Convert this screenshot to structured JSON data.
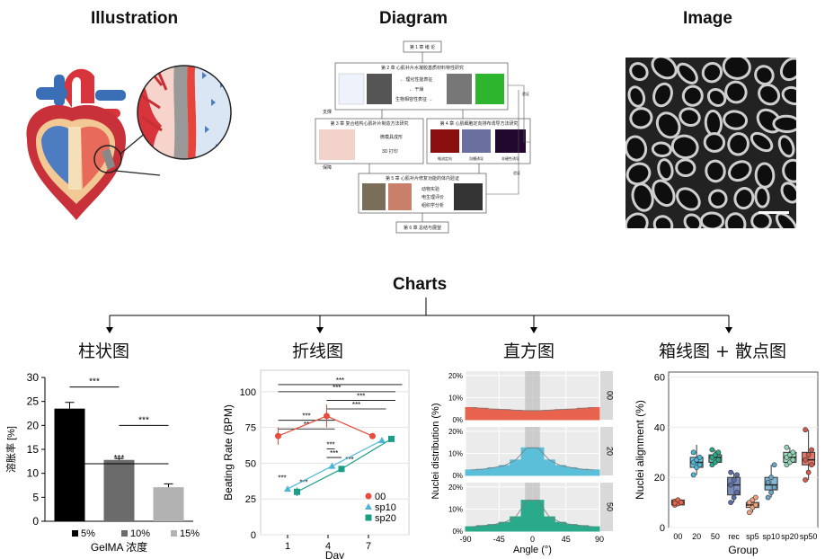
{
  "headers": {
    "illustration": "Illustration",
    "diagram": "Diagram",
    "image": "Image",
    "charts": "Charts"
  },
  "chart_titles": {
    "bar": "柱状图",
    "line": "折线图",
    "hist": "直方图",
    "box": "箱线图 + 散点图"
  },
  "diagram_text": {
    "ch1": "第 1 章 绪 论",
    "ch2": "第 2 章 心肌补片水凝胶基质材料特性研究",
    "ch2_items": [
      "← 理化性能表征",
      "← 干燥",
      "生物相容性表征 →"
    ],
    "ch3": "第 3 章 复合结构心肌补片制造方法研究",
    "ch3_items": [
      "微模具成形",
      "3D 打印"
    ],
    "ch4": "第 4 章 心肌细胞定向排布诱导方法研究",
    "ch4_items": [
      "微流定向",
      "沟槽诱导",
      "非硬性诱导"
    ],
    "ch5": "第 5 章 心肌补片修复功能的体内验证",
    "ch5_items": [
      "动物实验",
      "电生理评价",
      "组织学分析"
    ],
    "ch6": "第 6 章 总结与展望",
    "side_left_1": "支撑",
    "side_left_2": "保障",
    "side_right_1": "验证",
    "side_right_2": "验证"
  },
  "chart_data": [
    {
      "type": "bar",
      "categories": [
        "5%",
        "10%",
        "15%"
      ],
      "values": [
        23.5,
        12.8,
        7.1
      ],
      "errors": [
        1.3,
        0.3,
        0.7
      ],
      "colors": [
        "#000000",
        "#6b6b6b",
        "#b2b2b2"
      ],
      "xlabel": "GelMA 浓度",
      "ylabel": "溶胀率 [%]",
      "yticks": [
        0,
        5,
        10,
        15,
        20,
        25,
        30
      ],
      "ylim": [
        0,
        30
      ],
      "significance": [
        {
          "from": 0,
          "to": 1,
          "label": "***"
        },
        {
          "from": 0,
          "to": 2,
          "label": "***"
        },
        {
          "from": 1,
          "to": 2,
          "label": "***"
        }
      ]
    },
    {
      "type": "line",
      "x": [
        1,
        4,
        7
      ],
      "xlabel": "Day",
      "ylabel": "Beating Rate (BPM)",
      "yticks": [
        0,
        25,
        50,
        75,
        100
      ],
      "ylim": [
        0,
        115
      ],
      "xticks": [
        1,
        4,
        7
      ],
      "series": [
        {
          "name": "00",
          "color": "#e74c3c",
          "marker": "circle",
          "x": [
            0.3,
            3.9,
            7.3
          ],
          "values": [
            69,
            83,
            69
          ],
          "errors": [
            6,
            8,
            0
          ]
        },
        {
          "name": "sp10",
          "color": "#4db6d6",
          "marker": "triangle",
          "x": [
            1.0,
            4.3,
            8.0
          ],
          "values": [
            32,
            48,
            66
          ],
          "errors": [
            2,
            2,
            1
          ]
        },
        {
          "name": "sp20",
          "color": "#1a9e86",
          "marker": "square",
          "x": [
            1.7,
            5.0,
            8.7
          ],
          "values": [
            30,
            46,
            67
          ],
          "errors": [
            3,
            2,
            1
          ]
        }
      ],
      "significance_labels": [
        "***",
        "***",
        "***",
        "***",
        "***",
        "**",
        "***",
        "***",
        "***",
        "***",
        "***"
      ]
    },
    {
      "type": "histogram",
      "facets": [
        "00",
        "20",
        "50"
      ],
      "xlabel": "Angle (°)",
      "ylabel": "Nuclei distribution (%)",
      "xticks": [
        "-90",
        "-45",
        "0",
        "45",
        "90"
      ],
      "yticks": [
        "0%",
        "10%",
        "20%"
      ],
      "colors": [
        "#e8634e",
        "#5bbfd9",
        "#2aaa8a"
      ],
      "bins": [
        -90,
        -75,
        -60,
        -45,
        -30,
        -15,
        0,
        15,
        30,
        45,
        60,
        75,
        90
      ],
      "values": [
        [
          5.5,
          5.2,
          4.8,
          4.6,
          4.3,
          4.1,
          4.1,
          4.3,
          4.6,
          4.8,
          5.2,
          5.5
        ],
        [
          2.5,
          2.8,
          3.5,
          4.5,
          7.0,
          12.5,
          12.5,
          7.0,
          4.5,
          3.5,
          2.8,
          2.5
        ],
        [
          2.0,
          2.5,
          3.0,
          4.0,
          6.5,
          14.0,
          14.0,
          6.5,
          4.0,
          3.0,
          2.5,
          2.0
        ]
      ]
    },
    {
      "type": "box",
      "categories": [
        "00",
        "20",
        "50",
        "rec",
        "sp5",
        "sp10",
        "sp20",
        "sp50"
      ],
      "xlabel": "Group",
      "ylabel": "Nuclei alignment (%)",
      "yticks": [
        0,
        20,
        40,
        60
      ],
      "ylim": [
        0,
        62
      ],
      "colors": [
        "#e8634e",
        "#4db6d6",
        "#2aaa8a",
        "#5b6fa8",
        "#f0a07a",
        "#6aa5c8",
        "#8fd4b4",
        "#d45a4a"
      ],
      "boxes": [
        {
          "q1": 9,
          "median": 10,
          "q3": 11,
          "min": 9,
          "max": 11.5,
          "points": [
            9,
            9.5,
            10,
            10.5,
            11,
            10,
            9.8
          ]
        },
        {
          "q1": 24,
          "median": 26,
          "q3": 28,
          "min": 21,
          "max": 33,
          "points": [
            21,
            24,
            25,
            26,
            27,
            28,
            30
          ]
        },
        {
          "q1": 26,
          "median": 28,
          "q3": 29,
          "min": 25,
          "max": 31,
          "points": [
            25,
            26,
            27,
            28,
            29,
            30,
            31
          ]
        },
        {
          "q1": 13,
          "median": 17,
          "q3": 20,
          "min": 10,
          "max": 22,
          "points": [
            10,
            12,
            14,
            17,
            19,
            21,
            22
          ]
        },
        {
          "q1": 8,
          "median": 9,
          "q3": 10,
          "min": 6,
          "max": 12,
          "points": [
            6,
            8,
            9,
            10,
            11,
            12
          ]
        },
        {
          "q1": 15,
          "median": 17,
          "q3": 20,
          "min": 12,
          "max": 25,
          "points": [
            12,
            14,
            16,
            18,
            20,
            25
          ]
        },
        {
          "q1": 26,
          "median": 28,
          "q3": 30,
          "min": 25,
          "max": 32,
          "points": [
            25,
            26,
            27,
            28,
            29,
            30,
            32
          ]
        },
        {
          "q1": 25,
          "median": 27,
          "q3": 30,
          "min": 19,
          "max": 39,
          "points": [
            19,
            22,
            25,
            27,
            29,
            31,
            39
          ]
        }
      ]
    }
  ]
}
